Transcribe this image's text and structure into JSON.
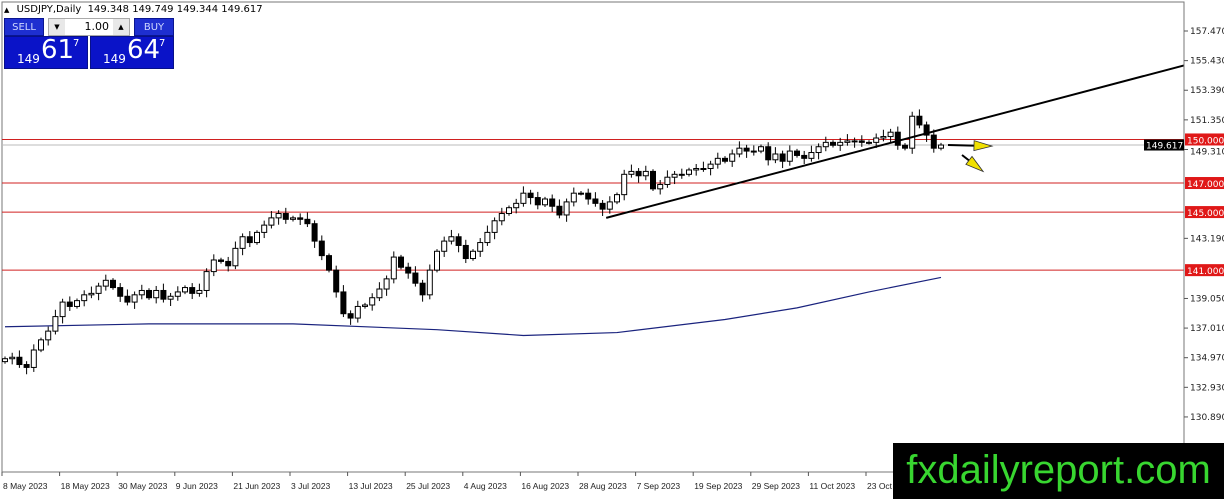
{
  "header": {
    "symbol": "USDJPY,Daily",
    "ohlc": "149.348 149.749 149.344 149.617"
  },
  "trade_panel": {
    "sell_label": "SELL",
    "buy_label": "BUY",
    "lot_value": "1.00",
    "sell_price": {
      "prefix": "149",
      "big": "61",
      "sup": "7"
    },
    "buy_price": {
      "prefix": "149",
      "big": "64",
      "sup": "7"
    }
  },
  "watermark": "fxdailyreport.com",
  "colors": {
    "bull_body": "#ffffff",
    "bear_body": "#000000",
    "level_line": "#d02020",
    "ma_line": "#1a237e",
    "arrow": "#f0e000",
    "watermark_text": "#38d630"
  },
  "chart_data": {
    "type": "candlestick",
    "symbol": "USDJPY",
    "timeframe": "Daily",
    "ylim": [
      130.0,
      158.3
    ],
    "y_ticks": [
      "157.470",
      "155.430",
      "153.390",
      "151.350",
      "149.310",
      "143.190",
      "139.050",
      "137.010",
      "134.970",
      "132.930",
      "130.890"
    ],
    "x_ticks": [
      "8 May 2023",
      "18 May 2023",
      "30 May 2023",
      "9 Jun 2023",
      "21 Jun 2023",
      "3 Jul 2023",
      "13 Jul 2023",
      "25 Jul 2023",
      "4 Aug 2023",
      "16 Aug 2023",
      "28 Aug 2023",
      "7 Sep 2023",
      "19 Sep 2023",
      "29 Sep 2023",
      "11 Oct 2023",
      "23 Oct"
    ],
    "closes": [
      134.9,
      135.0,
      134.5,
      134.3,
      135.5,
      136.2,
      136.8,
      137.8,
      138.8,
      138.5,
      138.9,
      139.3,
      139.4,
      139.9,
      140.3,
      139.8,
      139.2,
      138.8,
      139.3,
      139.6,
      139.1,
      139.6,
      139.0,
      139.2,
      139.5,
      139.8,
      139.4,
      139.6,
      140.9,
      141.7,
      141.6,
      141.3,
      142.5,
      143.3,
      142.9,
      143.6,
      144.1,
      144.6,
      144.9,
      144.5,
      144.6,
      144.5,
      144.2,
      143.0,
      142.0,
      141.0,
      139.5,
      138.0,
      137.7,
      138.5,
      138.6,
      139.1,
      139.7,
      140.4,
      141.9,
      141.2,
      140.8,
      140.1,
      139.3,
      141.0,
      142.3,
      143.0,
      143.3,
      142.7,
      141.8,
      142.3,
      142.9,
      143.6,
      144.4,
      144.9,
      145.3,
      145.6,
      146.3,
      146.0,
      145.5,
      145.9,
      145.4,
      144.8,
      145.7,
      146.3,
      146.3,
      145.9,
      145.6,
      145.2,
      145.7,
      146.2,
      147.6,
      147.8,
      147.5,
      147.8,
      146.6,
      146.9,
      147.4,
      147.6,
      147.6,
      147.9,
      148.0,
      148.0,
      148.3,
      148.7,
      148.5,
      149.0,
      149.4,
      149.2,
      149.2,
      149.5,
      148.6,
      149.0,
      148.5,
      149.2,
      148.9,
      148.7,
      149.1,
      149.5,
      149.8,
      149.6,
      149.8,
      149.9,
      149.9,
      149.8,
      149.8,
      150.1,
      150.2,
      150.5,
      149.6,
      149.4,
      151.6,
      151.0,
      150.3,
      149.4,
      149.617
    ],
    "moving_average": [
      [
        0,
        137.1
      ],
      [
        20,
        137.3
      ],
      [
        40,
        137.3
      ],
      [
        60,
        136.9
      ],
      [
        72,
        136.5
      ],
      [
        85,
        136.7
      ],
      [
        100,
        137.6
      ],
      [
        110,
        138.4
      ],
      [
        120,
        139.5
      ],
      [
        130,
        140.5
      ]
    ],
    "levels": [
      {
        "price": 150.0,
        "label": "150.000"
      },
      {
        "price": 147.0,
        "label": "147.000"
      },
      {
        "price": 145.0,
        "label": "145.000"
      },
      {
        "price": 141.0,
        "label": "141.000"
      }
    ],
    "current_price": {
      "price": 149.617,
      "label": "149.617"
    },
    "trendline": {
      "start_bar": 83.5,
      "start_price": 144.6,
      "end_price": 155.1
    },
    "annotations": [
      {
        "type": "arrow",
        "direction": "right"
      },
      {
        "type": "arrow",
        "direction": "down-right"
      }
    ]
  }
}
